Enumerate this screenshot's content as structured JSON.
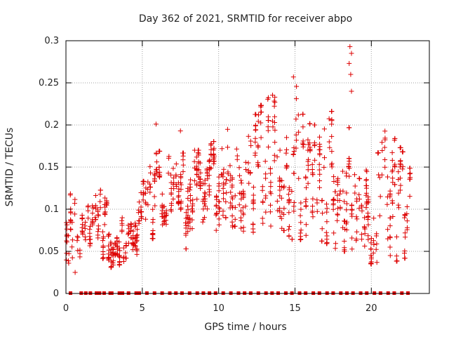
{
  "chart_data": {
    "type": "scatter",
    "title": "Day 362 of 2021, SRMTID for receiver abpo",
    "xlabel": "GPS time / hours",
    "ylabel": "SRMTID / TECUs",
    "xlim": [
      0,
      23.8
    ],
    "ylim": [
      0,
      0.3
    ],
    "xticks": [
      0,
      5,
      10,
      15,
      20
    ],
    "yticks": [
      0,
      0.05,
      0.1,
      0.15,
      0.2,
      0.25,
      0.3
    ],
    "ytick_labels": [
      "0",
      "0.05",
      "0.1",
      "0.15",
      "0.2",
      "0.25",
      "0.3"
    ],
    "grid": true,
    "marker": "+",
    "color": "#dd0000",
    "envelope": {
      "hours": [
        0,
        1,
        2,
        3,
        4,
        5,
        6,
        7,
        8,
        9,
        10,
        11,
        12,
        13,
        14,
        15,
        16,
        17,
        18,
        19,
        20,
        21,
        22,
        23
      ],
      "low": [
        0.045,
        0.05,
        0.06,
        0.04,
        0.04,
        0.065,
        0.08,
        0.08,
        0.06,
        0.07,
        0.08,
        0.09,
        0.08,
        0.09,
        0.09,
        0.07,
        0.08,
        0.07,
        0.06,
        0.06,
        0.045,
        0.045,
        0.05,
        0.06
      ],
      "high": [
        0.16,
        0.09,
        0.13,
        0.1,
        0.085,
        0.13,
        0.17,
        0.16,
        0.17,
        0.17,
        0.185,
        0.21,
        0.2,
        0.23,
        0.24,
        0.25,
        0.2,
        0.2,
        0.24,
        0.16,
        0.14,
        0.2,
        0.17,
        0.13
      ]
    },
    "spikes": [
      {
        "x": 5.9,
        "y": 0.201
      },
      {
        "x": 7.5,
        "y": 0.193
      },
      {
        "x": 14.9,
        "y": 0.257
      },
      {
        "x": 18.6,
        "y": 0.293
      },
      {
        "x": 18.7,
        "y": 0.285
      },
      {
        "x": 18.55,
        "y": 0.273
      },
      {
        "x": 18.65,
        "y": 0.26
      },
      {
        "x": 18.7,
        "y": 0.24
      },
      {
        "x": 0.6,
        "y": 0.025
      }
    ],
    "zero_markers_x": [
      0.3,
      1.0,
      1.3,
      1.6,
      2.0,
      2.1,
      2.2,
      2.5,
      2.9,
      3.0,
      3.5,
      3.7,
      4.1,
      4.6,
      4.8,
      5.3,
      5.8,
      6.3,
      6.8,
      7.2,
      7.6,
      8.1,
      8.6,
      9.0,
      9.4,
      9.8,
      10.3,
      10.8,
      11.3,
      11.7,
      12.1,
      12.6,
      13.1,
      13.5,
      13.9,
      14.4,
      14.8,
      15.3,
      15.7,
      16.2,
      16.6,
      17.1,
      17.5,
      18.0,
      18.4,
      18.8,
      19.3,
      19.7,
      20.2,
      20.6,
      21.1,
      21.5,
      22.0,
      22.4
    ]
  }
}
